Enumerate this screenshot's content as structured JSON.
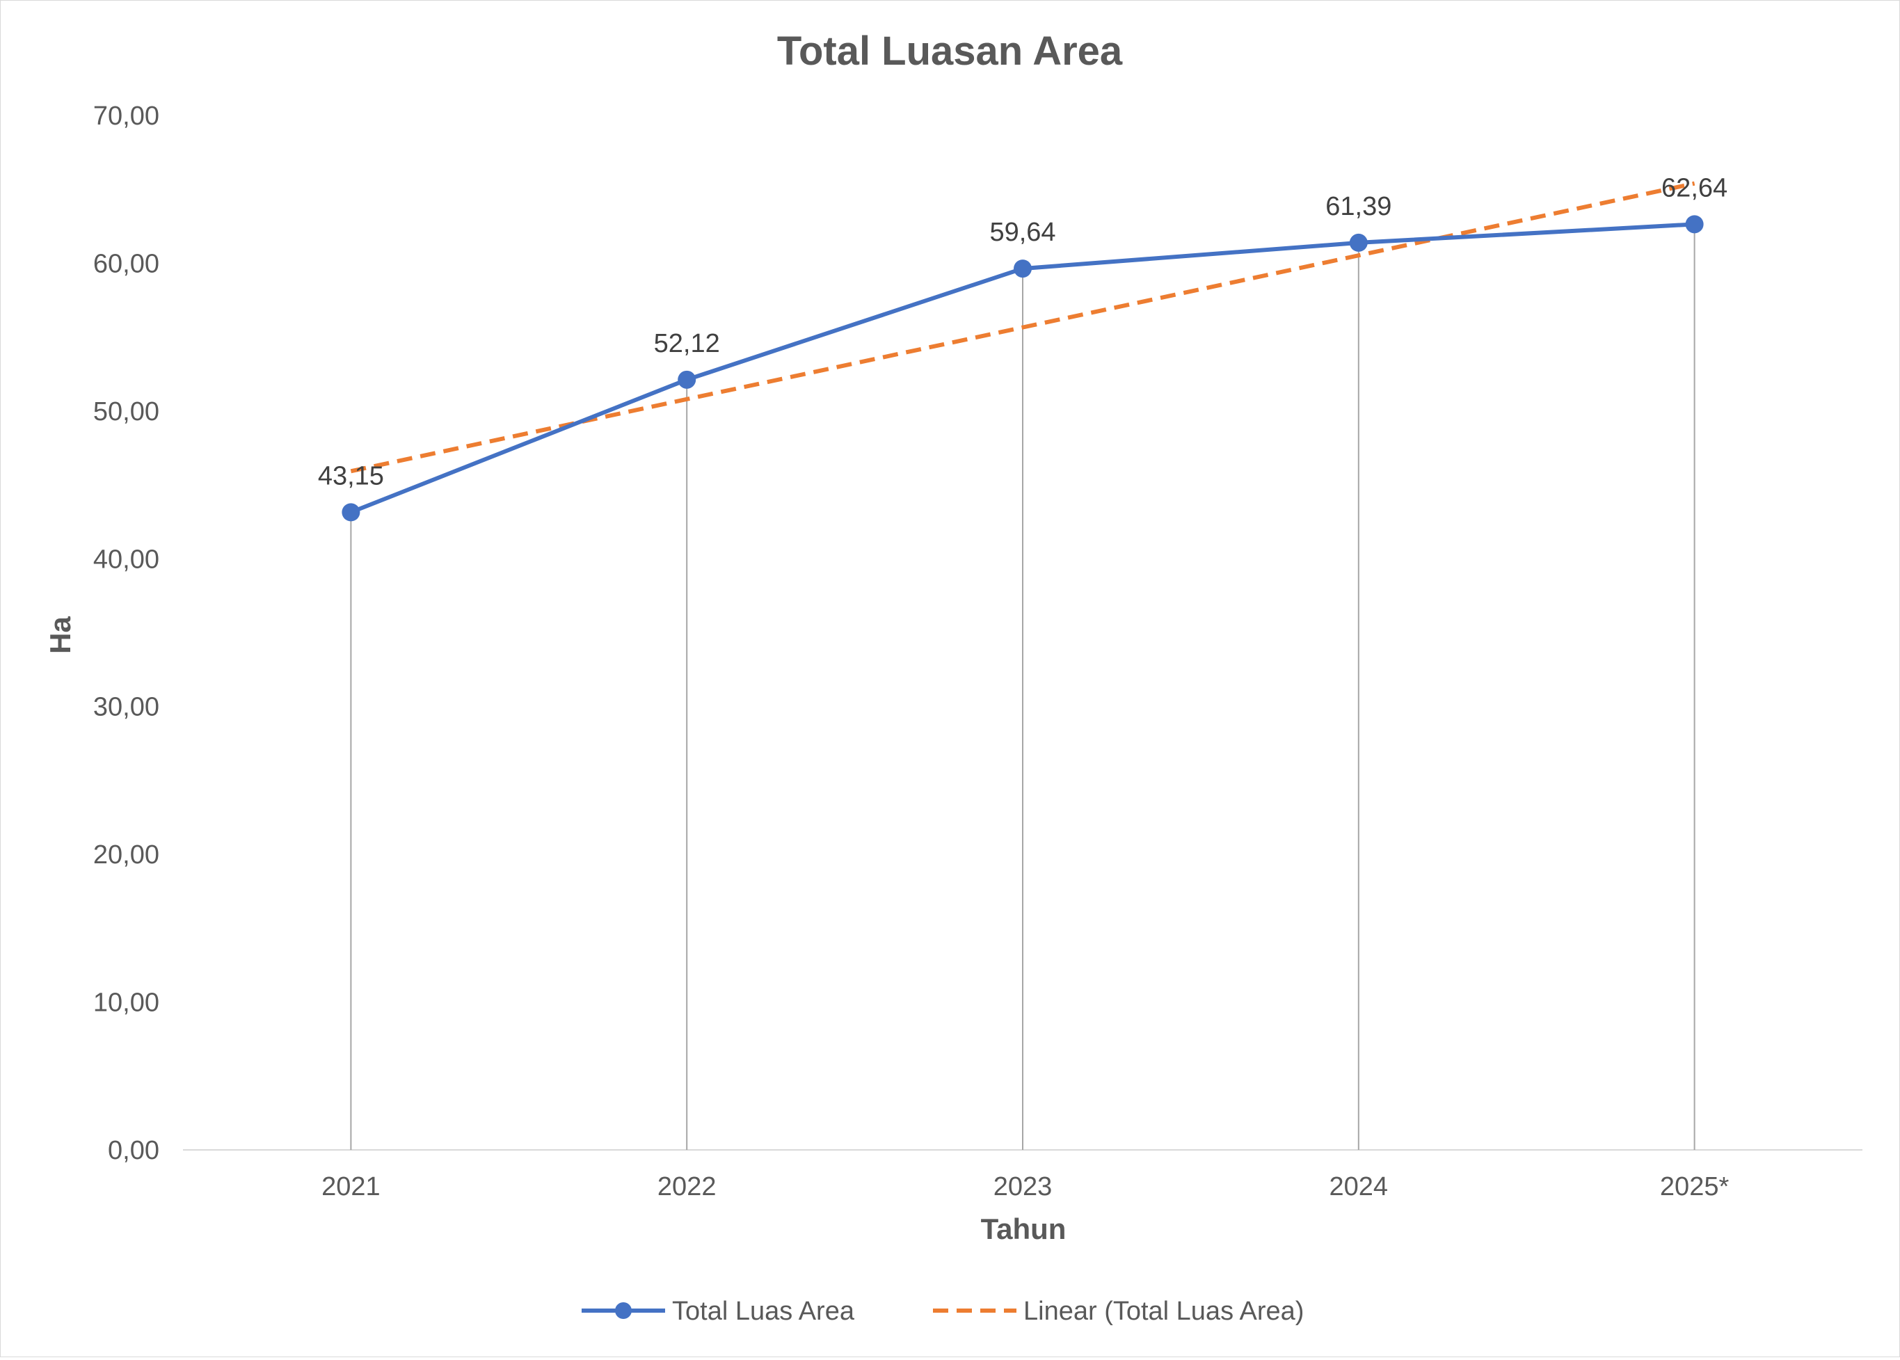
{
  "chart_data": {
    "type": "line",
    "title": "Total Luasan Area",
    "xlabel": "Tahun",
    "ylabel": "Ha",
    "categories": [
      "2021",
      "2022",
      "2023",
      "2024",
      "2025*"
    ],
    "ylim": [
      0,
      70
    ],
    "ytick_step": 10,
    "ytick_labels": [
      "0,00",
      "10,00",
      "20,00",
      "30,00",
      "40,00",
      "50,00",
      "60,00",
      "70,00"
    ],
    "series": [
      {
        "name": "Total Luas Area",
        "values": [
          43.15,
          52.12,
          59.64,
          61.39,
          62.64
        ],
        "data_labels": [
          "43,15",
          "52,12",
          "59,64",
          "61,39",
          "62,64"
        ],
        "color": "#4472c4",
        "marker": "circle"
      }
    ],
    "trendline": {
      "name": "Linear (Total Luas Area)",
      "type": "linear",
      "values": [
        45.93,
        50.8,
        55.66,
        60.53,
        65.4
      ],
      "color": "#ed7d31",
      "style": "dashed"
    },
    "drop_lines": true,
    "grid": false,
    "legend_position": "bottom"
  }
}
